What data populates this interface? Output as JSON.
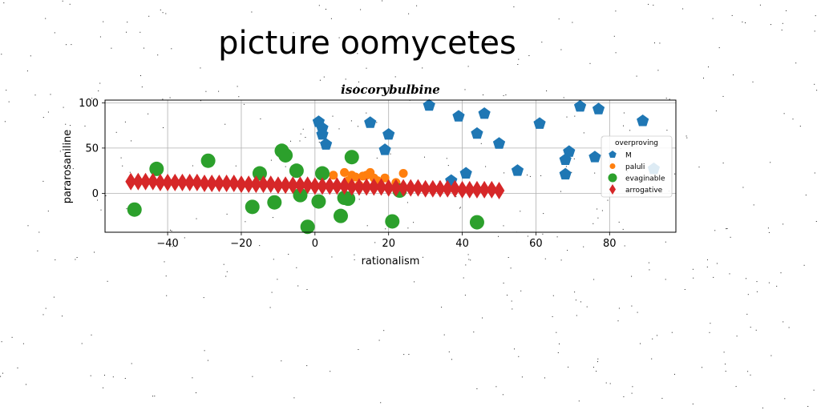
{
  "suptitle": "picture oomycetes",
  "chart_data": {
    "type": "scatter",
    "title": "isocorybulbine",
    "xlabel": "rationalism",
    "ylabel": "pararosaniline",
    "xlim": [
      -57,
      98
    ],
    "ylim": [
      -43,
      103
    ],
    "xticks": [
      "−40",
      "−20",
      "0",
      "20",
      "40",
      "60",
      "80"
    ],
    "xtick_values": [
      -40,
      -20,
      0,
      20,
      40,
      60,
      80
    ],
    "yticks": [
      "0",
      "50",
      "100"
    ],
    "ytick_values": [
      0,
      50,
      100
    ],
    "grid": true,
    "legend": {
      "title": "overproving",
      "placement": "right"
    },
    "series": [
      {
        "name": "M",
        "marker": "pentagon",
        "color": "#1f77b4",
        "points": [
          [
            1,
            79
          ],
          [
            2,
            72
          ],
          [
            2,
            65
          ],
          [
            3,
            54
          ],
          [
            15,
            78
          ],
          [
            19,
            48
          ],
          [
            20,
            65
          ],
          [
            31,
            97
          ],
          [
            37,
            14
          ],
          [
            39,
            85
          ],
          [
            41,
            22
          ],
          [
            44,
            66
          ],
          [
            46,
            88
          ],
          [
            50,
            55
          ],
          [
            55,
            25
          ],
          [
            61,
            77
          ],
          [
            68,
            21
          ],
          [
            68,
            37
          ],
          [
            69,
            46
          ],
          [
            72,
            96
          ],
          [
            76,
            40
          ],
          [
            77,
            93
          ],
          [
            89,
            80
          ],
          [
            92,
            27
          ]
        ]
      },
      {
        "name": "paluli",
        "marker": "circle",
        "color": "#ff7f0e",
        "points": [
          [
            5,
            20
          ],
          [
            8,
            23
          ],
          [
            10,
            20
          ],
          [
            11,
            18
          ],
          [
            13,
            19
          ],
          [
            14,
            20
          ],
          [
            15,
            23
          ],
          [
            16,
            17
          ],
          [
            17,
            14
          ],
          [
            19,
            17
          ],
          [
            22,
            12
          ],
          [
            24,
            22
          ],
          [
            9,
            14
          ],
          [
            12,
            9
          ]
        ]
      },
      {
        "name": "evaginable",
        "marker": "circle",
        "color": "#2ca02c",
        "points": [
          [
            -49,
            -18
          ],
          [
            -43,
            27
          ],
          [
            -29,
            36
          ],
          [
            -17,
            -15
          ],
          [
            -15,
            22
          ],
          [
            -11,
            -10
          ],
          [
            -9,
            47
          ],
          [
            -8,
            42
          ],
          [
            -5,
            25
          ],
          [
            -4,
            -2
          ],
          [
            -2,
            -37
          ],
          [
            1,
            -9
          ],
          [
            2,
            22
          ],
          [
            7,
            -25
          ],
          [
            8,
            -5
          ],
          [
            9,
            -6
          ],
          [
            10,
            40
          ],
          [
            21,
            -31
          ],
          [
            23,
            3
          ],
          [
            44,
            -32
          ]
        ]
      },
      {
        "name": "arrogative",
        "marker": "diamond",
        "color": "#d62728",
        "points": [
          [
            -50,
            13
          ],
          [
            -48,
            13
          ],
          [
            -46,
            13
          ],
          [
            -44,
            13
          ],
          [
            -42,
            12
          ],
          [
            -40,
            12
          ],
          [
            -38,
            12
          ],
          [
            -36,
            12
          ],
          [
            -34,
            12
          ],
          [
            -32,
            12
          ],
          [
            -30,
            11
          ],
          [
            -28,
            11
          ],
          [
            -26,
            11
          ],
          [
            -24,
            11
          ],
          [
            -22,
            11
          ],
          [
            -20,
            10
          ],
          [
            -18,
            10
          ],
          [
            -16,
            10
          ],
          [
            -14,
            10
          ],
          [
            -12,
            10
          ],
          [
            -10,
            9
          ],
          [
            -8,
            9
          ],
          [
            -6,
            9
          ],
          [
            -4,
            9
          ],
          [
            -2,
            9
          ],
          [
            0,
            8
          ],
          [
            2,
            8
          ],
          [
            4,
            8
          ],
          [
            6,
            8
          ],
          [
            8,
            8
          ],
          [
            10,
            7
          ],
          [
            12,
            7
          ],
          [
            14,
            7
          ],
          [
            16,
            7
          ],
          [
            18,
            7
          ],
          [
            20,
            6
          ],
          [
            22,
            6
          ],
          [
            24,
            6
          ],
          [
            26,
            6
          ],
          [
            28,
            6
          ],
          [
            30,
            5
          ],
          [
            32,
            5
          ],
          [
            34,
            5
          ],
          [
            36,
            5
          ],
          [
            38,
            5
          ],
          [
            40,
            4
          ],
          [
            42,
            4
          ],
          [
            44,
            4
          ],
          [
            46,
            4
          ],
          [
            48,
            4
          ],
          [
            50,
            3
          ]
        ]
      }
    ]
  }
}
